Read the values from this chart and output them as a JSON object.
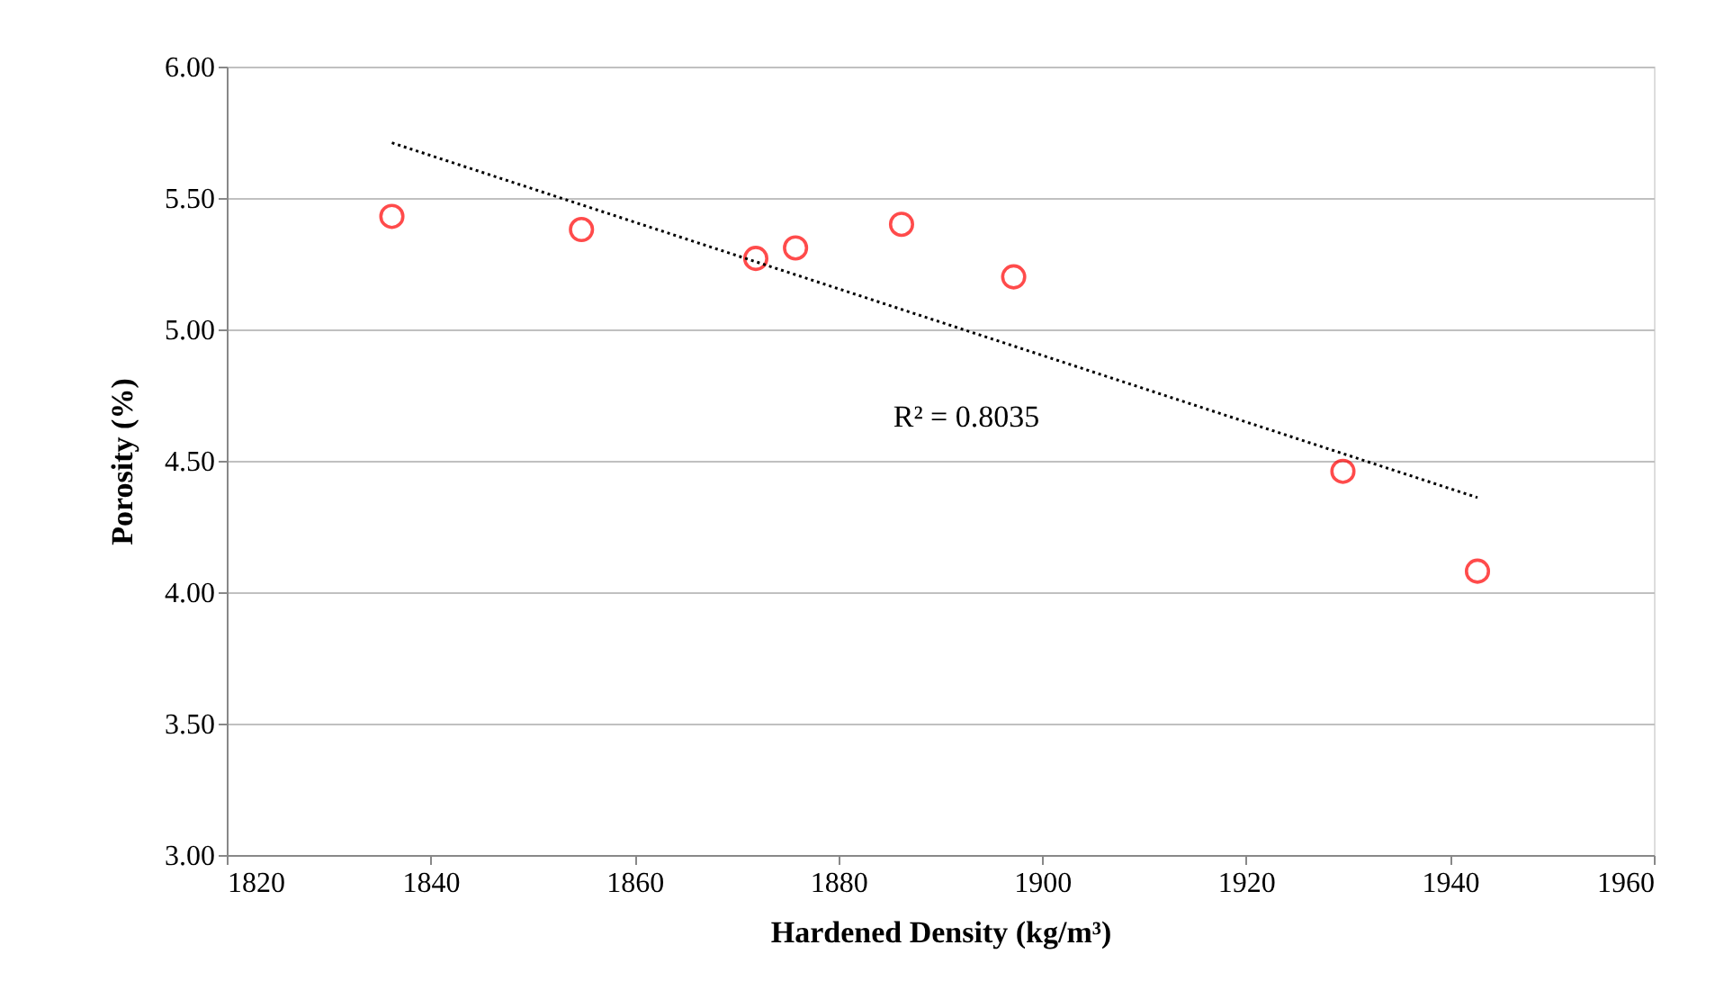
{
  "chart_data": {
    "type": "scatter",
    "xlabel": "Hardened Density (kg/m³)",
    "ylabel": "Porosity (%)",
    "xlim": [
      1820,
      1960
    ],
    "xticks": [
      {
        "value": 1820,
        "label": "1820"
      },
      {
        "value": 1840,
        "label": "1840"
      },
      {
        "value": 1860,
        "label": "1860"
      },
      {
        "value": 1880,
        "label": "1880"
      },
      {
        "value": 1900,
        "label": "1900"
      },
      {
        "value": 1920,
        "label": "1920"
      },
      {
        "value": 1940,
        "label": "1940"
      },
      {
        "value": 1960,
        "label": "1960"
      }
    ],
    "ylim": [
      3,
      6
    ],
    "yticks": [
      {
        "value": 3,
        "label": "3.00"
      },
      {
        "value": 3.5,
        "label": "3.50"
      },
      {
        "value": 4,
        "label": "4.00"
      },
      {
        "value": 4.5,
        "label": "4.50"
      },
      {
        "value": 5,
        "label": "5.00"
      },
      {
        "value": 5.5,
        "label": "5.50"
      },
      {
        "value": 6,
        "label": "6.00"
      }
    ],
    "grid": "y",
    "series": [
      {
        "color": "#ff0000",
        "marker": "circle",
        "x": [
          1836.2,
          1854.8,
          1871.9,
          1875.8,
          1886.2,
          1897.2,
          1929.5,
          1942.7
        ],
        "values": [
          5.43,
          5.38,
          5.27,
          5.31,
          5.4,
          5.2,
          4.46,
          4.08
        ]
      },
      {
        "type": "line",
        "color": "#000000",
        "marker": "none",
        "line_style": "dotted",
        "x": [
          1836.2,
          1942.7
        ],
        "values": [
          5.71,
          4.36
        ]
      }
    ],
    "annotations": [
      "R² = 0.8035"
    ]
  }
}
